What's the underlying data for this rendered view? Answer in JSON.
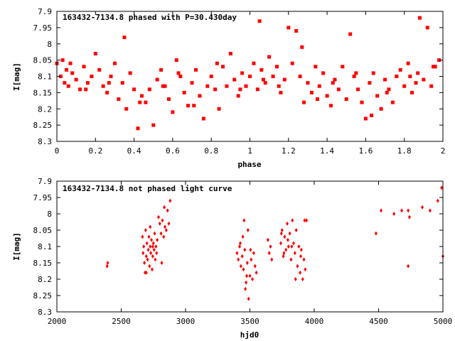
{
  "colors": {
    "points": "#ff0000",
    "axes": "#000000",
    "background": "#ffffff"
  },
  "chart_data": [
    {
      "type": "scatter",
      "title": "163432-7134.8 phased with P=30.430day",
      "xlabel": "phase",
      "ylabel": "I[mag]",
      "xlim": [
        0,
        2
      ],
      "ylim": [
        7.9,
        8.3
      ],
      "y_inverted": true,
      "grid": false,
      "legend": "none",
      "marker": "filled-square",
      "x_ticks": [
        "0",
        "0.2",
        "0.4",
        "0.6",
        "0.8",
        "1",
        "1.2",
        "1.4",
        "1.6",
        "1.8",
        "2"
      ],
      "y_ticks": [
        "7.9",
        "7.95",
        "8",
        "8.05",
        "8.1",
        "8.15",
        "8.2",
        "8.25",
        "8.3"
      ],
      "series": [
        {
          "x": [
            0.0,
            0.02,
            0.03,
            0.04,
            0.05,
            0.06,
            0.08,
            0.1,
            0.12,
            0.14,
            0.16,
            0.18,
            0.2,
            0.22,
            0.24,
            0.26,
            0.28,
            0.3,
            0.32,
            0.34,
            0.36,
            0.38,
            0.4,
            0.42,
            0.44,
            0.46,
            0.48,
            0.5,
            0.52,
            0.54,
            0.56,
            0.58,
            0.6,
            0.62,
            0.64,
            0.66,
            0.68,
            0.7,
            0.72,
            0.74,
            0.76,
            0.78,
            0.8,
            0.82,
            0.84,
            0.86,
            0.88,
            0.9,
            0.92,
            0.94,
            0.96,
            0.98,
            1.0,
            1.02,
            1.04,
            1.05,
            1.06,
            1.08,
            1.1,
            1.12,
            1.14,
            1.16,
            1.18,
            1.2,
            1.22,
            1.24,
            1.26,
            1.28,
            1.3,
            1.32,
            1.34,
            1.36,
            1.38,
            1.4,
            1.42,
            1.44,
            1.46,
            1.48,
            1.5,
            1.52,
            1.54,
            1.56,
            1.58,
            1.6,
            1.62,
            1.64,
            1.66,
            1.68,
            1.7,
            1.72,
            1.74,
            1.76,
            1.78,
            1.8,
            1.82,
            1.84,
            1.86,
            1.87,
            1.88,
            1.9,
            1.92,
            1.94,
            1.96,
            1.98,
            0.07,
            0.15,
            0.27,
            0.35,
            0.43,
            0.55,
            0.63,
            0.71,
            0.83,
            0.95,
            1.07,
            1.15,
            1.27,
            1.35,
            1.43,
            1.55,
            1.63,
            1.71,
            1.83,
            1.95
          ],
          "y": [
            8.06,
            8.1,
            8.05,
            8.12,
            8.08,
            8.13,
            8.09,
            8.11,
            8.14,
            8.07,
            8.12,
            8.1,
            8.03,
            8.08,
            8.13,
            8.15,
            8.1,
            8.06,
            8.17,
            8.12,
            8.2,
            8.09,
            8.14,
            8.26,
            8.16,
            8.18,
            8.14,
            8.25,
            8.11,
            8.08,
            8.13,
            8.17,
            8.21,
            8.05,
            8.1,
            8.15,
            8.19,
            8.12,
            8.08,
            8.16,
            8.23,
            8.13,
            8.1,
            8.14,
            8.2,
            8.07,
            8.13,
            8.03,
            8.11,
            8.16,
            8.09,
            8.13,
            8.1,
            8.06,
            8.14,
            7.93,
            8.08,
            8.12,
            8.04,
            8.1,
            8.07,
            8.15,
            8.11,
            7.95,
            8.06,
            7.96,
            8.1,
            8.18,
            8.12,
            8.15,
            8.07,
            8.13,
            8.09,
            8.16,
            8.19,
            8.11,
            8.14,
            8.07,
            8.17,
            7.97,
            8.1,
            8.14,
            8.18,
            8.23,
            8.12,
            8.09,
            8.16,
            8.2,
            8.11,
            8.14,
            8.18,
            8.1,
            8.08,
            8.13,
            8.06,
            8.15,
            8.12,
            8.09,
            7.92,
            8.11,
            7.95,
            8.13,
            8.07,
            8.05,
            8.06,
            8.14,
            8.12,
            7.98,
            8.18,
            8.13,
            8.09,
            8.19,
            8.06,
            8.14,
            8.11,
            8.13,
            8.01,
            8.17,
            8.12,
            8.09,
            8.22,
            8.15,
            8.1,
            8.07
          ]
        }
      ]
    },
    {
      "type": "scatter",
      "title": "163432-7134.8 not phased light curve",
      "xlabel": "hjd0",
      "ylabel": "I[mag]",
      "xlim": [
        2000,
        5000
      ],
      "ylim": [
        7.9,
        8.3
      ],
      "y_inverted": true,
      "grid": false,
      "legend": "none",
      "marker": "small-diamond",
      "x_ticks": [
        "2000",
        "2500",
        "3000",
        "3500",
        "4000",
        "4500",
        "5000"
      ],
      "y_ticks": [
        "7.9",
        "7.95",
        "8",
        "8.05",
        "8.1",
        "8.15",
        "8.2",
        "8.25",
        "8.3"
      ],
      "series": [
        {
          "x": [
            2390,
            2395,
            2665,
            2670,
            2675,
            2680,
            2685,
            2690,
            2695,
            2700,
            2705,
            2710,
            2715,
            2720,
            2725,
            2730,
            2735,
            2740,
            2745,
            2750,
            2755,
            2760,
            2765,
            2770,
            2775,
            2780,
            2790,
            2800,
            2810,
            2820,
            2830,
            2840,
            2850,
            2860,
            2870,
            2880,
            3400,
            3410,
            3420,
            3430,
            3440,
            3450,
            3460,
            3470,
            3480,
            3490,
            3500,
            3510,
            3520,
            3530,
            3540,
            3550,
            3640,
            3650,
            3660,
            3670,
            3740,
            3750,
            3760,
            3770,
            3780,
            3790,
            3800,
            3810,
            3820,
            3830,
            3840,
            3850,
            3860,
            3870,
            3880,
            3890,
            3900,
            3910,
            3920,
            3930,
            3940,
            4480,
            4520,
            4620,
            4680,
            4730,
            4740,
            4840,
            4900,
            4960,
            4990,
            5000,
            3425,
            3445,
            3465,
            3485,
            3505,
            3475,
            3455,
            2695,
            2725,
            2745,
            2815,
            2835,
            3745,
            3765,
            3795,
            3825,
            3855,
            3895,
            3925,
            4730
          ],
          "y": [
            8.16,
            8.15,
            8.07,
            8.12,
            8.1,
            8.15,
            8.18,
            8.05,
            8.13,
            8.09,
            8.14,
            8.11,
            8.07,
            8.16,
            8.1,
            8.12,
            8.08,
            8.17,
            8.13,
            8.09,
            8.11,
            8.06,
            8.14,
            8.1,
            8.12,
            8.08,
            8.01,
            8.03,
            8.06,
            8.02,
            8.07,
            8.04,
            8.05,
            7.99,
            8.03,
            7.96,
            8.12,
            8.14,
            8.1,
            8.16,
            8.13,
            8.17,
            8.11,
            8.21,
            8.15,
            8.26,
            8.19,
            8.14,
            8.2,
            8.12,
            8.16,
            8.18,
            8.08,
            8.12,
            8.1,
            8.14,
            8.09,
            8.05,
            8.13,
            8.07,
            8.11,
            8.03,
            8.1,
            8.06,
            8.14,
            8.02,
            8.09,
            8.12,
            8.05,
            8.16,
            8.1,
            8.18,
            8.11,
            8.2,
            8.14,
            8.17,
            8.02,
            8.06,
            7.99,
            8.0,
            7.99,
            8.16,
            8.01,
            7.98,
            7.99,
            7.96,
            7.92,
            8.13,
            8.09,
            8.07,
            8.23,
            8.05,
            8.11,
            8.19,
            8.02,
            8.18,
            8.04,
            8.1,
            8.15,
            7.98,
            8.06,
            8.12,
            8.08,
            8.1,
            8.2,
            8.13,
            8.02,
            7.99
          ]
        }
      ]
    }
  ]
}
